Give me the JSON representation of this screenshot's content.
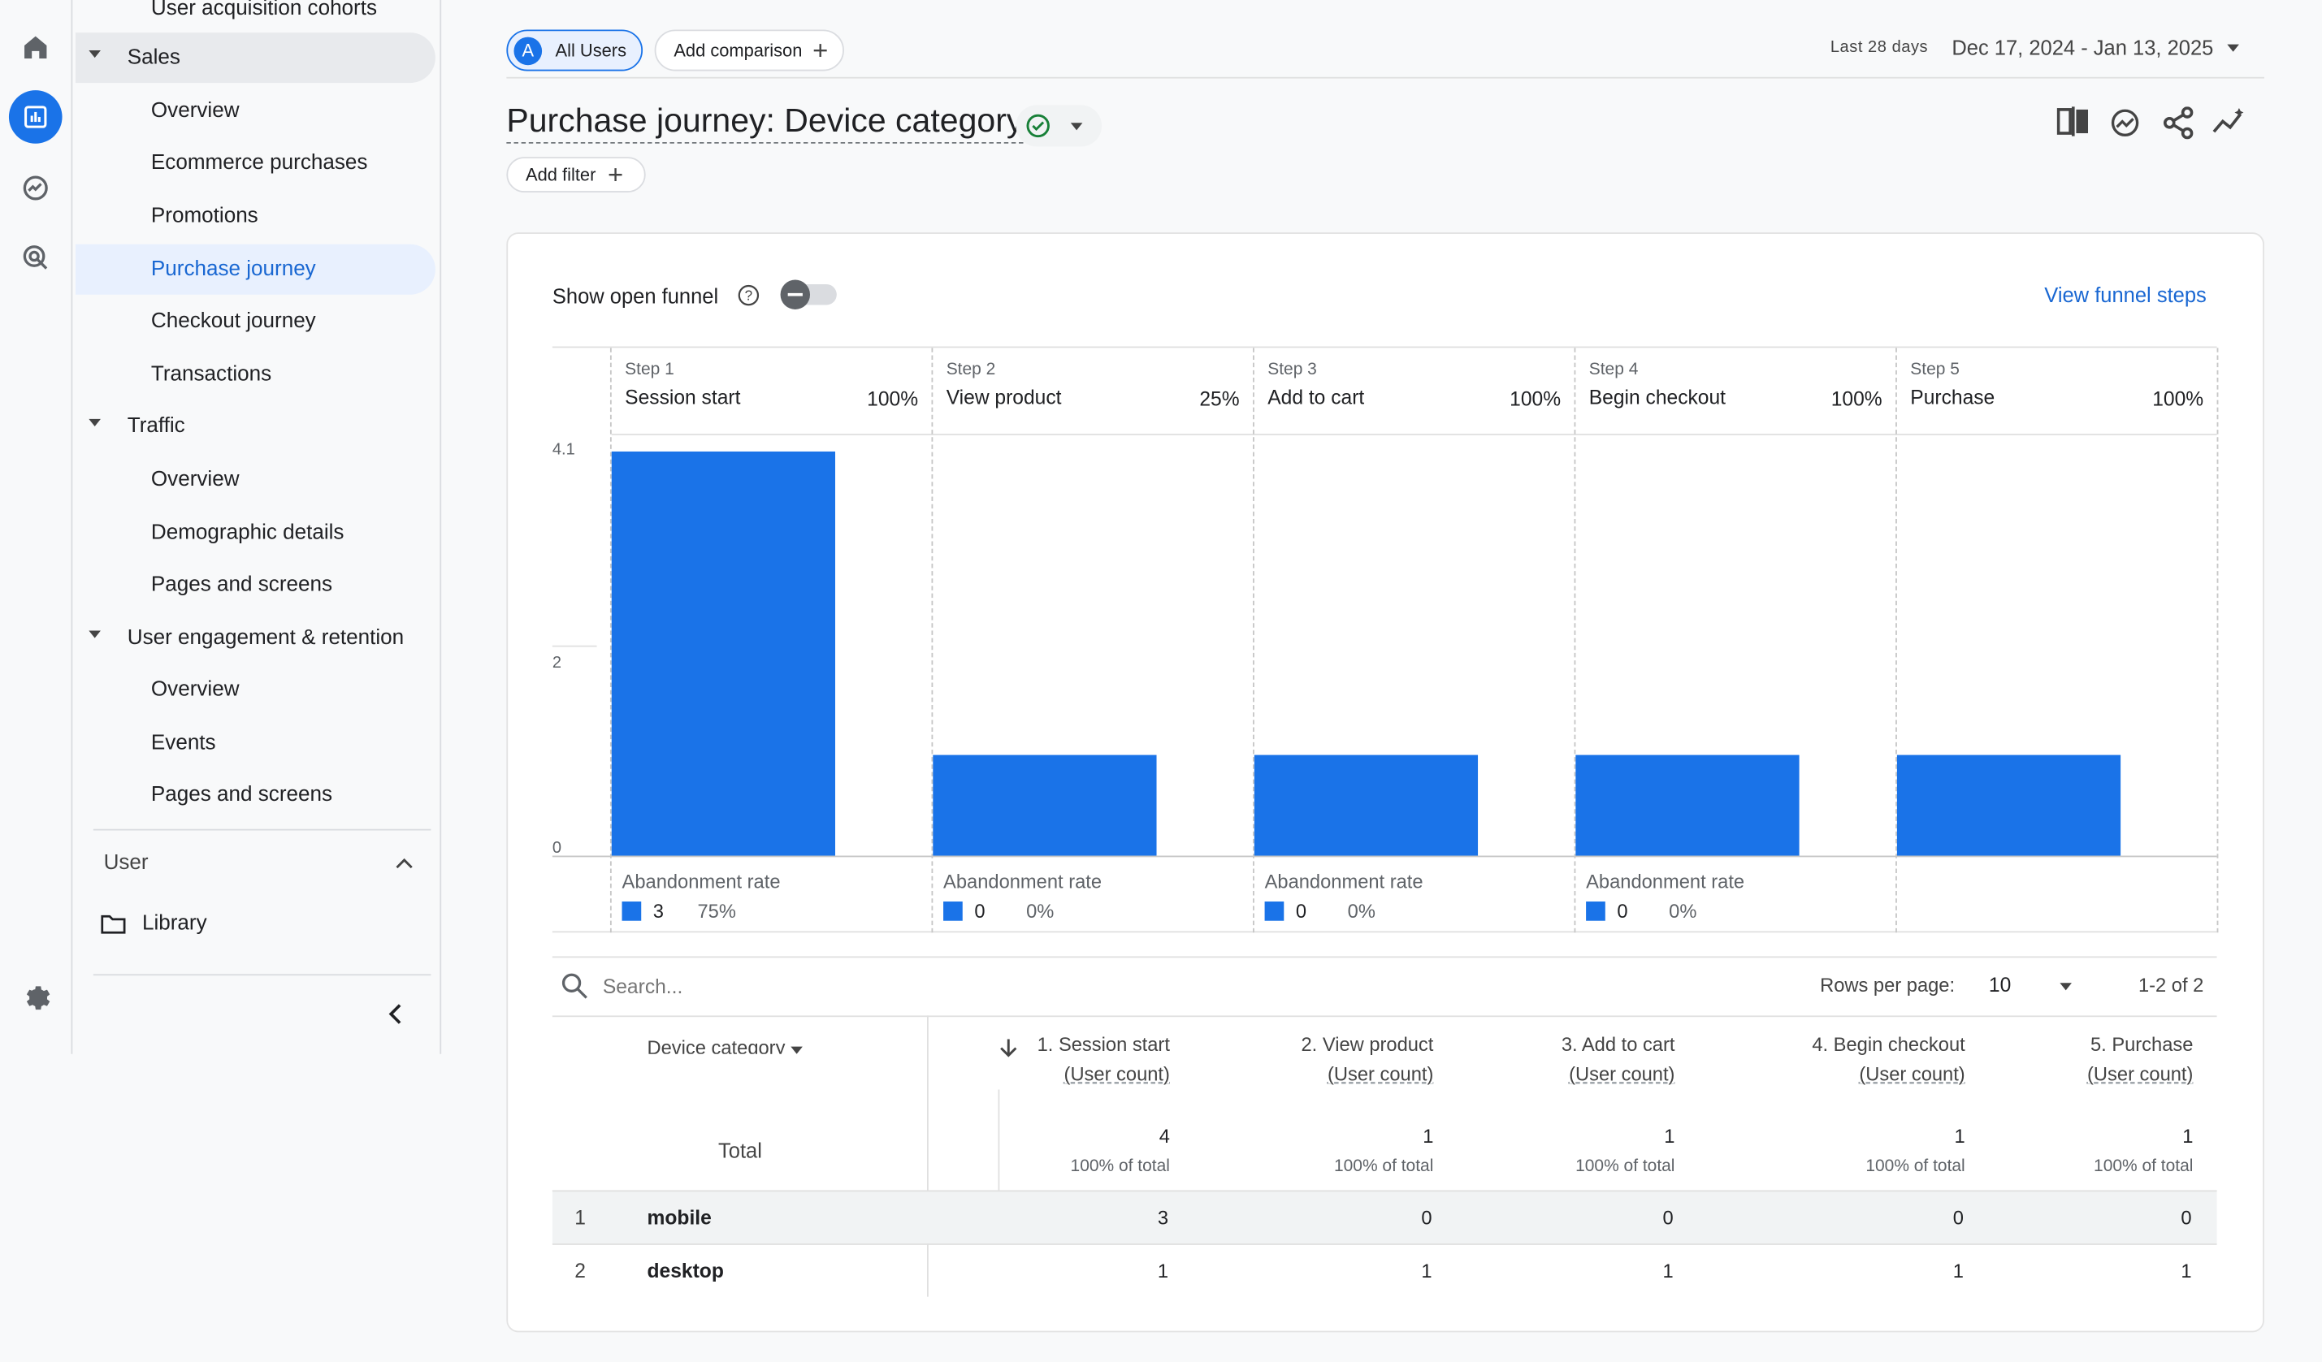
{
  "sidebar": {
    "cut_item": "User acquisition cohorts",
    "sections": [
      {
        "label": "Sales",
        "items": [
          "Overview",
          "Ecommerce purchases",
          "Promotions",
          "Purchase journey",
          "Checkout journey",
          "Transactions"
        ]
      },
      {
        "label": "Traffic",
        "items": [
          "Overview",
          "Demographic details",
          "Pages and screens"
        ]
      },
      {
        "label": "User engagement & retention",
        "items": [
          "Overview",
          "Events",
          "Pages and screens"
        ]
      }
    ],
    "user_label": "User",
    "library_label": "Library"
  },
  "rail_icons": [
    "home-icon",
    "reports-icon",
    "explore-icon",
    "advertising-icon",
    "settings-icon"
  ],
  "header": {
    "segment_letter": "A",
    "segment_label": "All Users",
    "add_comparison": "Add comparison",
    "date_range_label": "Last 28 days",
    "date_range": "Dec 17, 2024 - Jan 13, 2025",
    "title": "Purchase journey: Device category",
    "add_filter": "Add filter"
  },
  "funnel": {
    "show_open_funnel": "Show open funnel",
    "view_funnel_steps": "View funnel steps",
    "abandonment_label": "Abandonment rate",
    "steps": [
      {
        "label": "Step 1",
        "name": "Session start",
        "pct": "100%",
        "value": 4,
        "abandon_count": "3",
        "abandon_rate": "75%"
      },
      {
        "label": "Step 2",
        "name": "View product",
        "pct": "25%",
        "value": 1,
        "abandon_count": "0",
        "abandon_rate": "0%"
      },
      {
        "label": "Step 3",
        "name": "Add to cart",
        "pct": "100%",
        "value": 1,
        "abandon_count": "0",
        "abandon_rate": "0%"
      },
      {
        "label": "Step 4",
        "name": "Begin checkout",
        "pct": "100%",
        "value": 1,
        "abandon_count": "0",
        "abandon_rate": "0%"
      },
      {
        "label": "Step 5",
        "name": "Purchase",
        "pct": "100%",
        "value": 1
      }
    ]
  },
  "chart_data": {
    "type": "bar",
    "categories": [
      "Session start",
      "View product",
      "Add to cart",
      "Begin checkout",
      "Purchase"
    ],
    "values": [
      4,
      1,
      1,
      1,
      1
    ],
    "y_ticks": [
      "4.1",
      "2",
      "0"
    ],
    "ylim": [
      0,
      4.1
    ],
    "color": "#1a73e8"
  },
  "table": {
    "search_placeholder": "Search...",
    "rows_per_page_label": "Rows per page:",
    "rows_per_page": "10",
    "pagination": "1-2 of 2",
    "dimension_header": "Device category",
    "columns": [
      {
        "title": "1. Session start",
        "sub": "(User count)",
        "total": "4",
        "total_sub": "100% of total"
      },
      {
        "title": "2. View product",
        "sub": "(User count)",
        "total": "1",
        "total_sub": "100% of total"
      },
      {
        "title": "3. Add to cart",
        "sub": "(User count)",
        "total": "1",
        "total_sub": "100% of total"
      },
      {
        "title": "4. Begin checkout",
        "sub": "(User count)",
        "total": "1",
        "total_sub": "100% of total"
      },
      {
        "title": "5. Purchase",
        "sub": "(User count)",
        "total": "1",
        "total_sub": "100% of total"
      }
    ],
    "total_label": "Total",
    "rows": [
      {
        "index": "1",
        "device": "mobile",
        "values": [
          "3",
          "0",
          "0",
          "0",
          "0"
        ]
      },
      {
        "index": "2",
        "device": "desktop",
        "values": [
          "1",
          "1",
          "1",
          "1",
          "1"
        ]
      }
    ]
  },
  "colors": {
    "accent": "#1a73e8",
    "selected_bg": "#e8f0fe",
    "check_green": "#188038"
  }
}
